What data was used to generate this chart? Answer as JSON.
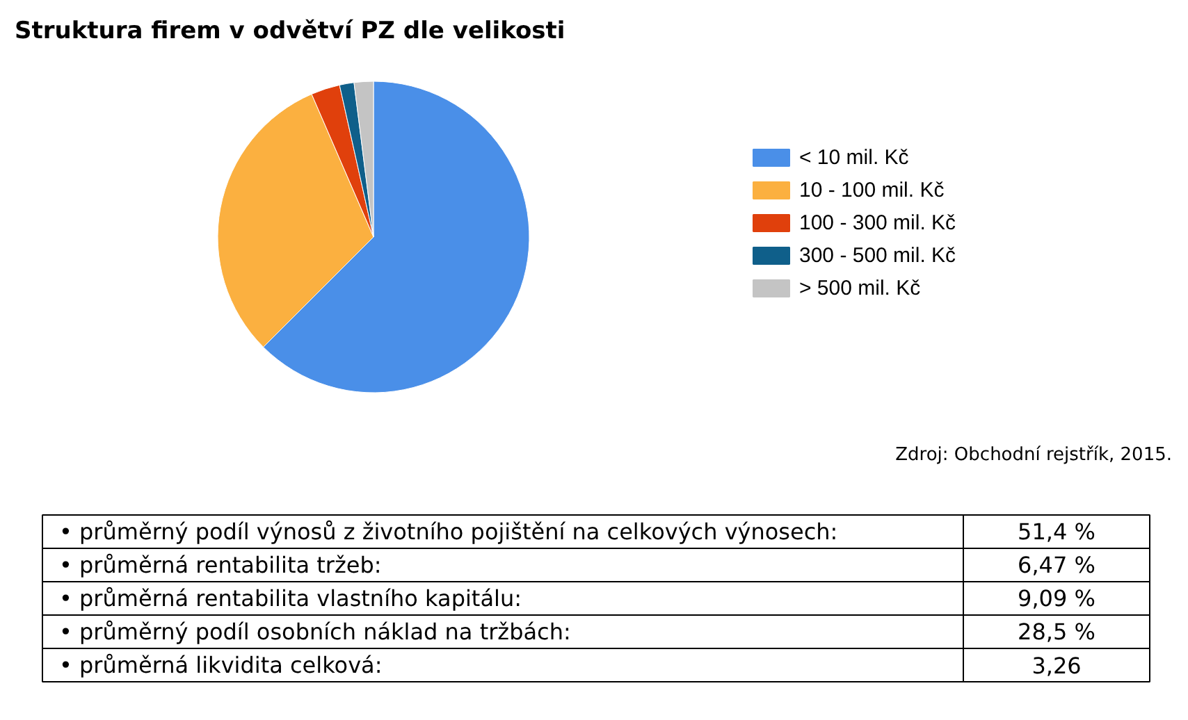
{
  "chart_data": {
    "type": "pie",
    "title": "Struktura firem v odvětví PZ dle velikosti",
    "categories": [
      "< 10 mil. Kč",
      "10 - 100 mil. Kč",
      "100 - 300 mil. Kč",
      "300 - 500 mil. Kč",
      "> 500 mil. Kč"
    ],
    "values": [
      62.5,
      31,
      3,
      1.5,
      2
    ],
    "colors": [
      "#4a8fe8",
      "#fbb040",
      "#e0400c",
      "#0f5f8a",
      "#c4c4c4"
    ],
    "legend": "right",
    "annotations": [
      "Zdroj: Obchodní rejstřík, 2015.",
      "• průměrný podíl výnosů z životního pojištění na celkových výnosech:",
      "51,4 %",
      "• průměrná rentabilita tržeb:",
      "6,47 %",
      "• průměrná rentabilita vlastního kapitálu:",
      "9,09 %",
      "• průměrný podíl osobních náklad na tržbách:",
      "28,5 %",
      "• průměrná likvidita celková:",
      "3,26"
    ]
  }
}
